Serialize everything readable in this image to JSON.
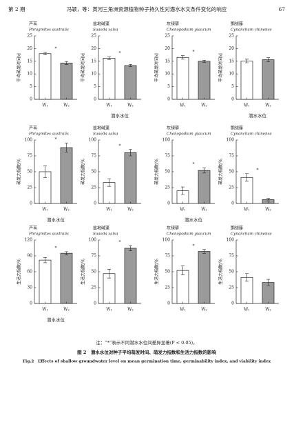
{
  "header": {
    "issue": "第 2 期",
    "running_title": "冯颖，等：黄河三角洲资源植物种子持久性对潜水水文条件变化的响应",
    "page": "67"
  },
  "chart_data": [
    {
      "type": "bar",
      "title": "芦苇",
      "subtitle": "Phragmites australis",
      "ylabel": "平均萌发时间/d",
      "categories": [
        "W₁",
        "W₂"
      ],
      "values": [
        18,
        14.3
      ],
      "errors": [
        0.5,
        0.6
      ],
      "colors": [
        "#ffffff",
        "#9a9a9a"
      ],
      "annotation": "*",
      "ylim": [
        0,
        25
      ],
      "yticks": [
        0,
        5,
        10,
        15,
        20,
        25
      ]
    },
    {
      "type": "bar",
      "title": "盐地碱蓬",
      "subtitle": "Suaeda salsa",
      "ylabel": "平均萌发时间/d",
      "categories": [
        "W₁",
        "W₂"
      ],
      "values": [
        16.2,
        13.3
      ],
      "errors": [
        0.5,
        0.4
      ],
      "colors": [
        "#ffffff",
        "#9a9a9a"
      ],
      "annotation": "*",
      "ylim": [
        0,
        25
      ],
      "yticks": [
        0,
        5,
        10,
        15,
        20,
        25
      ],
      "xlabel": "潜水水位"
    },
    {
      "type": "bar",
      "title": "灰绿藜",
      "subtitle": "Chenopodium glaucum",
      "ylabel": "平均萌发时间/d",
      "categories": [
        "W₁",
        "W₂"
      ],
      "values": [
        16.5,
        15
      ],
      "errors": [
        0.7,
        0.4
      ],
      "colors": [
        "#ffffff",
        "#9a9a9a"
      ],
      "annotation": "*",
      "ylim": [
        0,
        25
      ],
      "yticks": [
        0,
        5,
        10,
        15,
        20,
        25
      ]
    },
    {
      "type": "bar",
      "title": "鹅绒藤",
      "subtitle": "Cynanchum chinense",
      "ylabel": "平均萌发时间/d",
      "categories": [
        "W₁",
        "W₂"
      ],
      "values": [
        15.1,
        15.6
      ],
      "errors": [
        0.7,
        0.8
      ],
      "colors": [
        "#ffffff",
        "#9a9a9a"
      ],
      "ylim": [
        0,
        25
      ],
      "yticks": [
        0,
        5,
        10,
        15,
        20,
        25
      ],
      "xlabel": "潜水水位"
    },
    {
      "type": "bar",
      "title": "芦苇",
      "subtitle": "Phragmites australis",
      "ylabel": "萌发力指数/%",
      "categories": [
        "W₁",
        "W₂"
      ],
      "values": [
        50,
        88
      ],
      "errors": [
        9,
        7
      ],
      "colors": [
        "#ffffff",
        "#9a9a9a"
      ],
      "annotation": "*",
      "ylim": [
        0,
        100
      ],
      "yticks": [
        0,
        25,
        50,
        75,
        100
      ],
      "xlabel": "潜水水位"
    },
    {
      "type": "bar",
      "title": "盐地碱蓬",
      "subtitle": "Suaeda salsa",
      "ylabel": "萌发力指数/%",
      "categories": [
        "W₁",
        "W₂"
      ],
      "values": [
        33,
        80
      ],
      "errors": [
        6,
        5
      ],
      "colors": [
        "#ffffff",
        "#9a9a9a"
      ],
      "annotation": "*",
      "ylim": [
        0,
        100
      ],
      "yticks": [
        0,
        25,
        50,
        75,
        100
      ]
    },
    {
      "type": "bar",
      "title": "灰绿藜",
      "subtitle": "Chenopodium glaucum",
      "ylabel": "萌发力指数/%",
      "categories": [
        "W₁",
        "W₂"
      ],
      "values": [
        20,
        52
      ],
      "errors": [
        6,
        4
      ],
      "colors": [
        "#ffffff",
        "#9a9a9a"
      ],
      "annotation": "*",
      "ylim": [
        0,
        100
      ],
      "yticks": [
        0,
        25,
        50,
        75,
        100
      ],
      "xlabel": "潜水水位"
    },
    {
      "type": "bar",
      "title": "鹅绒藤",
      "subtitle": "Cynanchum chinense",
      "ylabel": "萌发力指数/%",
      "categories": [
        "W₁",
        "W₂"
      ],
      "values": [
        41,
        6
      ],
      "errors": [
        6,
        2
      ],
      "colors": [
        "#ffffff",
        "#9a9a9a"
      ],
      "annotation": "*",
      "ylim": [
        0,
        100
      ],
      "yticks": [
        0,
        25,
        50,
        75,
        100
      ]
    },
    {
      "type": "bar",
      "title": "芦苇",
      "subtitle": "Phragmites australis",
      "ylabel": "生活力指数/%",
      "categories": [
        "W₁",
        "W₂"
      ],
      "values": [
        82,
        95
      ],
      "errors": [
        5,
        3
      ],
      "colors": [
        "#ffffff",
        "#9a9a9a"
      ],
      "annotation": "*",
      "ylim": [
        0,
        120
      ],
      "yticks": [
        0,
        30,
        60,
        90,
        120
      ],
      "xlabel": "潜水水位"
    },
    {
      "type": "bar",
      "title": "盐地碱蓬",
      "subtitle": "Suaeda salsa",
      "ylabel": "生活力指数/%",
      "categories": [
        "W₁",
        "W₂"
      ],
      "values": [
        47,
        87
      ],
      "errors": [
        7,
        4
      ],
      "colors": [
        "#ffffff",
        "#9a9a9a"
      ],
      "annotation": "*",
      "ylim": [
        0,
        100
      ],
      "yticks": [
        0,
        25,
        50,
        75,
        100
      ]
    },
    {
      "type": "bar",
      "title": "灰绿藜",
      "subtitle": "Chenopodium glaucum",
      "ylabel": "生活力指数/%",
      "categories": [
        "W₁",
        "W₂"
      ],
      "values": [
        52,
        82
      ],
      "errors": [
        7,
        3
      ],
      "colors": [
        "#ffffff",
        "#9a9a9a"
      ],
      "annotation": "*",
      "ylim": [
        0,
        100
      ],
      "yticks": [
        0,
        25,
        50,
        75,
        100
      ]
    },
    {
      "type": "bar",
      "title": "鹅绒藤",
      "subtitle": "Cynanchum chinense",
      "ylabel": "生活力指数/%",
      "categories": [
        "W₁",
        "W₂"
      ],
      "values": [
        41,
        33
      ],
      "errors": [
        6,
        5
      ],
      "colors": [
        "#ffffff",
        "#9a9a9a"
      ],
      "ylim": [
        0,
        100
      ],
      "yticks": [
        0,
        25,
        50,
        75,
        100
      ]
    }
  ],
  "footer": {
    "note": "注：“*”表示不同潜水水位间差异显著(P < 0.05)。",
    "caption": "图 2　潜水水位对种子平均萌发时间、萌发力指数和生活力指数的影响",
    "caption_en": "Fig.2　Effects of shallow groundwater level on mean germination time, germinability index, and viability index"
  }
}
